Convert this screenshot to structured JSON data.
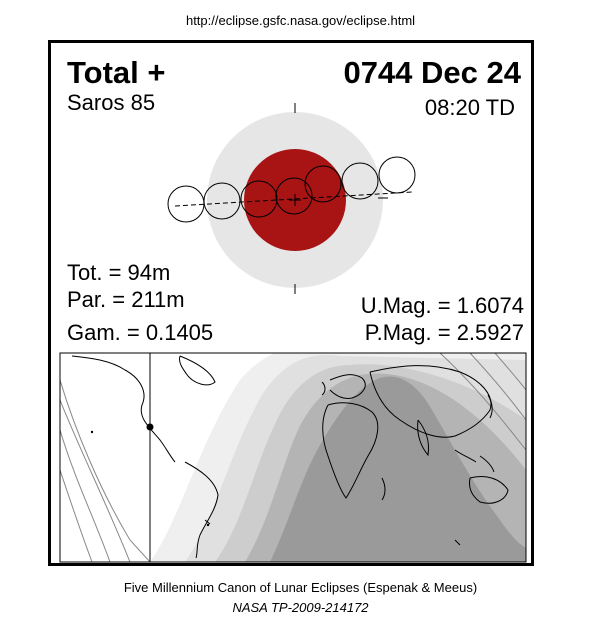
{
  "url": "http://eclipse.gsfc.nasa.gov/eclipse.html",
  "eclipse": {
    "type": "Total  +",
    "saros": "Saros  85",
    "date": "0744 Dec 24",
    "time": "08:20 TD",
    "tot": "Tot. =  94m",
    "par": "Par. = 211m",
    "gam": "Gam. = 0.1405",
    "umag": "U.Mag. = 1.6074",
    "pmag": "P.Mag. = 2.5927"
  },
  "colors": {
    "umbra": "#a81414",
    "penumbra": "#e6e6e6",
    "night": "#9a9a9a",
    "map_zone_1": "#b4b4b4",
    "map_zone_2": "#cdcdcd",
    "map_zone_3": "#e0e0e0",
    "map_zone_4": "#efefef"
  },
  "footer": {
    "line1": "Five Millennium Canon of Lunar Eclipses (Espenak & Meeus)",
    "line2": "NASA TP-2009-214172"
  }
}
